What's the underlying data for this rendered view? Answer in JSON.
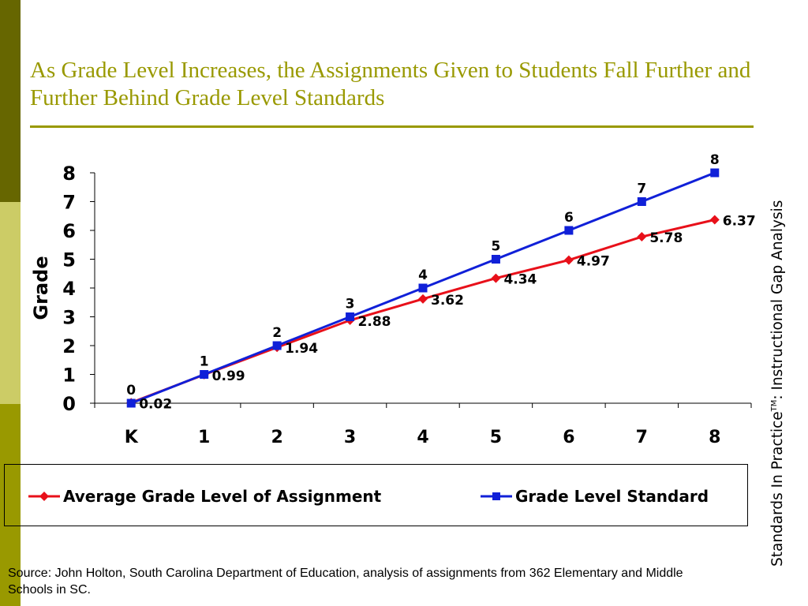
{
  "slide": {
    "title": "As Grade Level Increases, the Assignments Given to Students Fall Further and Further Behind Grade Level Standards",
    "side_caption_main": "Standards In Practice",
    "side_caption_tm": "TM",
    "side_caption_rest": ": Instructional Gap Analysis",
    "source": "Source: John Holton, South Carolina Department of Education, analysis of assignments from 362 Elementary and Middle Schools in SC.",
    "colors": {
      "accent": "#999900",
      "dark_band": "#666600",
      "light_band": "#cccc66"
    }
  },
  "chart_data": {
    "type": "line",
    "categories": [
      "K",
      "1",
      "2",
      "3",
      "4",
      "5",
      "6",
      "7",
      "8"
    ],
    "ylabel": "Grade",
    "xlabel": "",
    "ylim": [
      0,
      8
    ],
    "yticks": [
      "0",
      "1",
      "2",
      "3",
      "4",
      "5",
      "6",
      "7",
      "8"
    ],
    "legend_position": "bottom",
    "grid": false,
    "series": [
      {
        "name": "Average Grade Level of Assignment",
        "color": "#e8101a",
        "marker": "diamond",
        "values": [
          0.02,
          0.99,
          1.94,
          2.88,
          3.62,
          4.34,
          4.97,
          5.78,
          6.37
        ],
        "labels": [
          "0.02",
          "0.99",
          "1.94",
          "2.88",
          "3.62",
          "4.34",
          "4.97",
          "5.78",
          "6.37"
        ]
      },
      {
        "name": "Grade Level Standard",
        "color": "#1020d8",
        "marker": "square",
        "values": [
          0,
          1,
          2,
          3,
          4,
          5,
          6,
          7,
          8
        ],
        "labels": [
          "0",
          "1",
          "2",
          "3",
          "4",
          "5",
          "6",
          "7",
          "8"
        ]
      }
    ]
  }
}
